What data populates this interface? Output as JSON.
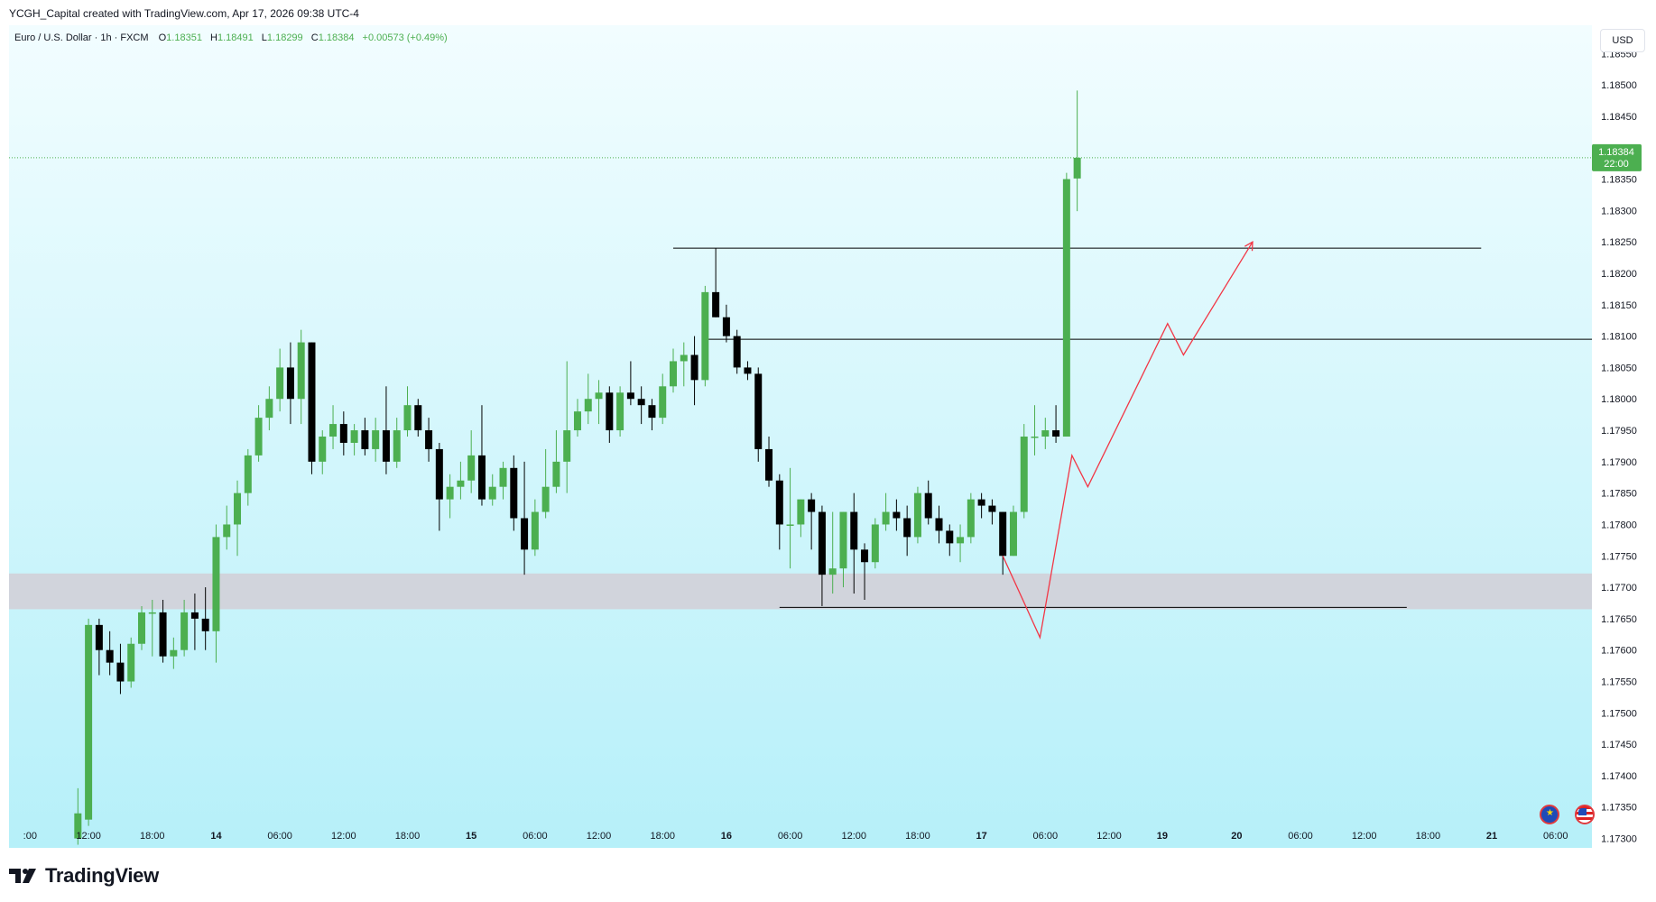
{
  "header": {
    "credit": "YCGH_Capital created with TradingView.com, Apr 17, 2026 09:38 UTC-4"
  },
  "legend": {
    "symbol": "Euro / U.S. Dollar · 1h · FXCM",
    "o_label": "O",
    "o_value": "1.18351",
    "h_label": "H",
    "h_value": "1.18491",
    "l_label": "L",
    "l_value": "1.18299",
    "c_label": "C",
    "c_value": "1.18384",
    "change": "+0.00573 (+0.49%)"
  },
  "currency_button": "USD",
  "price_tag": {
    "price": "1.18384",
    "countdown": "22:00"
  },
  "footer": {
    "brand": "TradingView"
  },
  "colors": {
    "up": "#4caf50",
    "down": "#000000",
    "bg_top": "#e6fbff",
    "bg_bottom": "#b8f1fa",
    "zone": "#d1d4dc",
    "projection": "#f23645",
    "price_line": "#4caf50",
    "level": "#000000"
  },
  "icons": [
    "eu-flag-icon",
    "us-flag-icon",
    "tradingview-logo-icon"
  ],
  "chart_data": {
    "type": "candlestick",
    "symbol": "EURUSD",
    "interval": "1h",
    "y_ticks": [
      "1.18550",
      "1.18500",
      "1.18450",
      "1.18400",
      "1.18350",
      "1.18300",
      "1.18250",
      "1.18200",
      "1.18150",
      "1.18100",
      "1.18050",
      "1.18000",
      "1.17950",
      "1.17900",
      "1.17850",
      "1.17800",
      "1.17750",
      "1.17700",
      "1.17650",
      "1.17600",
      "1.17550",
      "1.17500",
      "1.17450",
      "1.17400",
      "1.17350",
      "1.17300"
    ],
    "ylim": [
      1.17285,
      1.18595
    ],
    "x_ticks": [
      {
        "label": ":00",
        "i": -10.5
      },
      {
        "label": "12:00",
        "i": -5
      },
      {
        "label": "18:00",
        "i": 1
      },
      {
        "label": "14",
        "i": 7,
        "bold": true
      },
      {
        "label": "06:00",
        "i": 13
      },
      {
        "label": "12:00",
        "i": 19
      },
      {
        "label": "18:00",
        "i": 25
      },
      {
        "label": "15",
        "i": 31,
        "bold": true
      },
      {
        "label": "06:00",
        "i": 37
      },
      {
        "label": "12:00",
        "i": 43
      },
      {
        "label": "18:00",
        "i": 49
      },
      {
        "label": "16",
        "i": 55,
        "bold": true
      },
      {
        "label": "06:00",
        "i": 61
      },
      {
        "label": "12:00",
        "i": 67
      },
      {
        "label": "18:00",
        "i": 73
      },
      {
        "label": "17",
        "i": 79,
        "bold": true
      },
      {
        "label": "06:00",
        "i": 85
      },
      {
        "label": "12:00",
        "i": 91
      },
      {
        "label": "19",
        "i": 96,
        "bold": true
      },
      {
        "label": "20",
        "i": 103,
        "bold": true
      },
      {
        "label": "06:00",
        "i": 109
      },
      {
        "label": "12:00",
        "i": 115
      },
      {
        "label": "18:00",
        "i": 121
      },
      {
        "label": "21",
        "i": 127,
        "bold": true
      },
      {
        "label": "06:00",
        "i": 133
      }
    ],
    "candles": [
      {
        "i": -6,
        "o": 1.173,
        "h": 1.1738,
        "l": 1.1729,
        "c": 1.1734
      },
      {
        "i": -5,
        "o": 1.1733,
        "h": 1.1765,
        "l": 1.1732,
        "c": 1.1764
      },
      {
        "i": -4,
        "o": 1.1764,
        "h": 1.1765,
        "l": 1.1756,
        "c": 1.176
      },
      {
        "i": -3,
        "o": 1.176,
        "h": 1.1763,
        "l": 1.1756,
        "c": 1.1758
      },
      {
        "i": -2,
        "o": 1.1758,
        "h": 1.1761,
        "l": 1.1753,
        "c": 1.1755
      },
      {
        "i": -1,
        "o": 1.1755,
        "h": 1.1762,
        "l": 1.1754,
        "c": 1.1761
      },
      {
        "i": 0,
        "o": 1.1761,
        "h": 1.1767,
        "l": 1.176,
        "c": 1.1766
      },
      {
        "i": 1,
        "o": 1.1766,
        "h": 1.1768,
        "l": 1.1759,
        "c": 1.1766
      },
      {
        "i": 2,
        "o": 1.1766,
        "h": 1.1768,
        "l": 1.1758,
        "c": 1.1759
      },
      {
        "i": 3,
        "o": 1.1759,
        "h": 1.1762,
        "l": 1.1757,
        "c": 1.176
      },
      {
        "i": 4,
        "o": 1.176,
        "h": 1.1768,
        "l": 1.1759,
        "c": 1.1766
      },
      {
        "i": 5,
        "o": 1.1766,
        "h": 1.1769,
        "l": 1.176,
        "c": 1.1765
      },
      {
        "i": 6,
        "o": 1.1765,
        "h": 1.177,
        "l": 1.176,
        "c": 1.1763
      },
      {
        "i": 7,
        "o": 1.1763,
        "h": 1.178,
        "l": 1.1758,
        "c": 1.1778
      },
      {
        "i": 8,
        "o": 1.1778,
        "h": 1.1783,
        "l": 1.1776,
        "c": 1.178
      },
      {
        "i": 9,
        "o": 1.178,
        "h": 1.1787,
        "l": 1.1775,
        "c": 1.1785
      },
      {
        "i": 10,
        "o": 1.1785,
        "h": 1.1792,
        "l": 1.1783,
        "c": 1.1791
      },
      {
        "i": 11,
        "o": 1.1791,
        "h": 1.1799,
        "l": 1.179,
        "c": 1.1797
      },
      {
        "i": 12,
        "o": 1.1797,
        "h": 1.1802,
        "l": 1.1795,
        "c": 1.18
      },
      {
        "i": 13,
        "o": 1.18,
        "h": 1.1808,
        "l": 1.1798,
        "c": 1.1805
      },
      {
        "i": 14,
        "o": 1.1805,
        "h": 1.1809,
        "l": 1.1796,
        "c": 1.18
      },
      {
        "i": 15,
        "o": 1.18,
        "h": 1.1811,
        "l": 1.1796,
        "c": 1.1809
      },
      {
        "i": 16,
        "o": 1.1809,
        "h": 1.1809,
        "l": 1.1788,
        "c": 1.179
      },
      {
        "i": 17,
        "o": 1.179,
        "h": 1.1795,
        "l": 1.1788,
        "c": 1.1794
      },
      {
        "i": 18,
        "o": 1.1794,
        "h": 1.1799,
        "l": 1.1792,
        "c": 1.1796
      },
      {
        "i": 19,
        "o": 1.1796,
        "h": 1.1798,
        "l": 1.1791,
        "c": 1.1793
      },
      {
        "i": 20,
        "o": 1.1793,
        "h": 1.1796,
        "l": 1.1791,
        "c": 1.1795
      },
      {
        "i": 21,
        "o": 1.1795,
        "h": 1.1797,
        "l": 1.1791,
        "c": 1.1792
      },
      {
        "i": 22,
        "o": 1.1792,
        "h": 1.1797,
        "l": 1.179,
        "c": 1.1795
      },
      {
        "i": 23,
        "o": 1.1795,
        "h": 1.1802,
        "l": 1.1788,
        "c": 1.179
      },
      {
        "i": 24,
        "o": 1.179,
        "h": 1.1797,
        "l": 1.1789,
        "c": 1.1795
      },
      {
        "i": 25,
        "o": 1.1795,
        "h": 1.1802,
        "l": 1.1794,
        "c": 1.1799
      },
      {
        "i": 26,
        "o": 1.1799,
        "h": 1.18,
        "l": 1.1794,
        "c": 1.1795
      },
      {
        "i": 27,
        "o": 1.1795,
        "h": 1.1797,
        "l": 1.179,
        "c": 1.1792
      },
      {
        "i": 28,
        "o": 1.1792,
        "h": 1.1793,
        "l": 1.1779,
        "c": 1.1784
      },
      {
        "i": 29,
        "o": 1.1784,
        "h": 1.1788,
        "l": 1.1781,
        "c": 1.1786
      },
      {
        "i": 30,
        "o": 1.1786,
        "h": 1.179,
        "l": 1.1784,
        "c": 1.1787
      },
      {
        "i": 31,
        "o": 1.1787,
        "h": 1.1795,
        "l": 1.1785,
        "c": 1.1791
      },
      {
        "i": 32,
        "o": 1.1791,
        "h": 1.1799,
        "l": 1.1783,
        "c": 1.1784
      },
      {
        "i": 33,
        "o": 1.1784,
        "h": 1.1788,
        "l": 1.1783,
        "c": 1.1786
      },
      {
        "i": 34,
        "o": 1.1786,
        "h": 1.179,
        "l": 1.1784,
        "c": 1.1789
      },
      {
        "i": 35,
        "o": 1.1789,
        "h": 1.1791,
        "l": 1.1779,
        "c": 1.1781
      },
      {
        "i": 36,
        "o": 1.1781,
        "h": 1.179,
        "l": 1.1772,
        "c": 1.1776
      },
      {
        "i": 37,
        "o": 1.1776,
        "h": 1.1784,
        "l": 1.1775,
        "c": 1.1782
      },
      {
        "i": 38,
        "o": 1.1782,
        "h": 1.1792,
        "l": 1.1781,
        "c": 1.1786
      },
      {
        "i": 39,
        "o": 1.1786,
        "h": 1.1795,
        "l": 1.1785,
        "c": 1.179
      },
      {
        "i": 40,
        "o": 1.179,
        "h": 1.1806,
        "l": 1.1785,
        "c": 1.1795
      },
      {
        "i": 41,
        "o": 1.1795,
        "h": 1.18,
        "l": 1.1794,
        "c": 1.1798
      },
      {
        "i": 42,
        "o": 1.1798,
        "h": 1.1804,
        "l": 1.1796,
        "c": 1.18
      },
      {
        "i": 43,
        "o": 1.18,
        "h": 1.1803,
        "l": 1.1796,
        "c": 1.1801
      },
      {
        "i": 44,
        "o": 1.1801,
        "h": 1.1802,
        "l": 1.1793,
        "c": 1.1795
      },
      {
        "i": 45,
        "o": 1.1795,
        "h": 1.1802,
        "l": 1.1794,
        "c": 1.1801
      },
      {
        "i": 46,
        "o": 1.1801,
        "h": 1.1806,
        "l": 1.1799,
        "c": 1.18
      },
      {
        "i": 47,
        "o": 1.18,
        "h": 1.1802,
        "l": 1.1796,
        "c": 1.1799
      },
      {
        "i": 48,
        "o": 1.1799,
        "h": 1.18,
        "l": 1.1795,
        "c": 1.1797
      },
      {
        "i": 49,
        "o": 1.1797,
        "h": 1.1804,
        "l": 1.1796,
        "c": 1.1802
      },
      {
        "i": 50,
        "o": 1.1802,
        "h": 1.1808,
        "l": 1.1801,
        "c": 1.1806
      },
      {
        "i": 51,
        "o": 1.1806,
        "h": 1.1809,
        "l": 1.1802,
        "c": 1.1807
      },
      {
        "i": 52,
        "o": 1.1807,
        "h": 1.181,
        "l": 1.1799,
        "c": 1.1803
      },
      {
        "i": 53,
        "o": 1.1803,
        "h": 1.1818,
        "l": 1.1802,
        "c": 1.1817
      },
      {
        "i": 54,
        "o": 1.1817,
        "h": 1.1824,
        "l": 1.1813,
        "c": 1.1813
      },
      {
        "i": 55,
        "o": 1.1813,
        "h": 1.1815,
        "l": 1.1809,
        "c": 1.181
      },
      {
        "i": 56,
        "o": 1.181,
        "h": 1.1811,
        "l": 1.1804,
        "c": 1.1805
      },
      {
        "i": 57,
        "o": 1.1805,
        "h": 1.1806,
        "l": 1.1803,
        "c": 1.1804
      },
      {
        "i": 58,
        "o": 1.1804,
        "h": 1.1805,
        "l": 1.179,
        "c": 1.1792
      },
      {
        "i": 59,
        "o": 1.1792,
        "h": 1.1794,
        "l": 1.1786,
        "c": 1.1787
      },
      {
        "i": 60,
        "o": 1.1787,
        "h": 1.1788,
        "l": 1.1776,
        "c": 1.178
      },
      {
        "i": 61,
        "o": 1.178,
        "h": 1.1789,
        "l": 1.1773,
        "c": 1.178
      },
      {
        "i": 62,
        "o": 1.178,
        "h": 1.1784,
        "l": 1.1778,
        "c": 1.1784
      },
      {
        "i": 63,
        "o": 1.1784,
        "h": 1.1785,
        "l": 1.1776,
        "c": 1.1782
      },
      {
        "i": 64,
        "o": 1.1782,
        "h": 1.1783,
        "l": 1.1767,
        "c": 1.1772
      },
      {
        "i": 65,
        "o": 1.1772,
        "h": 1.1782,
        "l": 1.1769,
        "c": 1.1773
      },
      {
        "i": 66,
        "o": 1.1773,
        "h": 1.1782,
        "l": 1.177,
        "c": 1.1782
      },
      {
        "i": 67,
        "o": 1.1782,
        "h": 1.1785,
        "l": 1.1769,
        "c": 1.1776
      },
      {
        "i": 68,
        "o": 1.1776,
        "h": 1.1777,
        "l": 1.1768,
        "c": 1.1774
      },
      {
        "i": 69,
        "o": 1.1774,
        "h": 1.1781,
        "l": 1.1773,
        "c": 1.178
      },
      {
        "i": 70,
        "o": 1.178,
        "h": 1.1785,
        "l": 1.1779,
        "c": 1.1782
      },
      {
        "i": 71,
        "o": 1.1782,
        "h": 1.1784,
        "l": 1.1779,
        "c": 1.1781
      },
      {
        "i": 72,
        "o": 1.1781,
        "h": 1.1783,
        "l": 1.1775,
        "c": 1.1778
      },
      {
        "i": 73,
        "o": 1.1778,
        "h": 1.1786,
        "l": 1.1777,
        "c": 1.1785
      },
      {
        "i": 74,
        "o": 1.1785,
        "h": 1.1787,
        "l": 1.178,
        "c": 1.1781
      },
      {
        "i": 75,
        "o": 1.1781,
        "h": 1.1783,
        "l": 1.1777,
        "c": 1.1779
      },
      {
        "i": 76,
        "o": 1.1779,
        "h": 1.178,
        "l": 1.1775,
        "c": 1.1777
      },
      {
        "i": 77,
        "o": 1.1777,
        "h": 1.178,
        "l": 1.1774,
        "c": 1.1778
      },
      {
        "i": 78,
        "o": 1.1778,
        "h": 1.1785,
        "l": 1.1777,
        "c": 1.1784
      },
      {
        "i": 79,
        "o": 1.1784,
        "h": 1.1785,
        "l": 1.1781,
        "c": 1.1783
      },
      {
        "i": 80,
        "o": 1.1783,
        "h": 1.1784,
        "l": 1.178,
        "c": 1.1782
      },
      {
        "i": 81,
        "o": 1.1782,
        "h": 1.1782,
        "l": 1.1772,
        "c": 1.1775
      },
      {
        "i": 82,
        "o": 1.1775,
        "h": 1.1783,
        "l": 1.1775,
        "c": 1.1782
      },
      {
        "i": 83,
        "o": 1.1782,
        "h": 1.1796,
        "l": 1.1781,
        "c": 1.1794
      },
      {
        "i": 84,
        "o": 1.1794,
        "h": 1.1799,
        "l": 1.1791,
        "c": 1.1794
      },
      {
        "i": 85,
        "o": 1.1794,
        "h": 1.1797,
        "l": 1.1792,
        "c": 1.1795
      },
      {
        "i": 86,
        "o": 1.1795,
        "h": 1.1799,
        "l": 1.1793,
        "c": 1.1794
      },
      {
        "i": 87,
        "o": 1.1794,
        "h": 1.1836,
        "l": 1.1794,
        "c": 1.1835
      },
      {
        "i": 88,
        "o": 1.18351,
        "h": 1.18491,
        "l": 1.18299,
        "c": 1.18384
      }
    ],
    "levels": [
      {
        "price": 1.1824,
        "i_start": 50,
        "i_end": 126
      },
      {
        "price": 1.18095,
        "i_start": 53,
        "i_end": 150
      },
      {
        "price": 1.17668,
        "i_start": 60,
        "i_end": 119
      }
    ],
    "zone": {
      "top": 1.17722,
      "bottom": 1.17665
    },
    "last_price": 1.18384,
    "projection": [
      {
        "i": 81,
        "p": 1.1775
      },
      {
        "i": 84.5,
        "p": 1.1762
      },
      {
        "i": 87.5,
        "p": 1.1791
      },
      {
        "i": 89,
        "p": 1.1786
      },
      {
        "i": 96.5,
        "p": 1.1812
      },
      {
        "i": 98,
        "p": 1.1807
      },
      {
        "i": 104.5,
        "p": 1.1825
      }
    ]
  }
}
